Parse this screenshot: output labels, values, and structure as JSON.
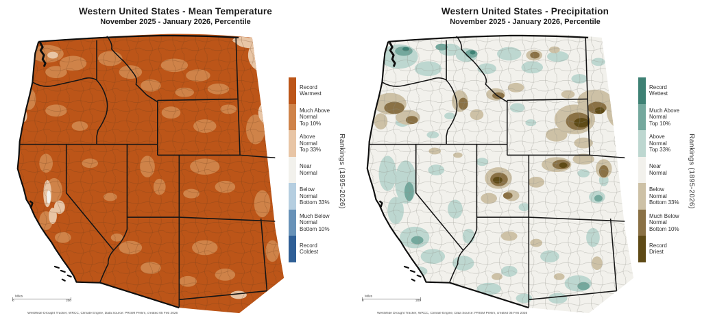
{
  "panels": [
    {
      "title": "Western United States - Mean Temperature",
      "subtitle": "November 2025 - January 2026, Percentile",
      "legend": {
        "rotated_label": "Rankings (1895-2026)",
        "items": [
          {
            "label": "Record\nWarmest",
            "color": "#bc5518"
          },
          {
            "label": "Much Above\nNormal\nTop 10%",
            "color": "#cf8349"
          },
          {
            "label": "Above\nNormal\nTop 33%",
            "color": "#e8c5a5"
          },
          {
            "label": "Near\nNormal",
            "color": "#f2f1ec"
          },
          {
            "label": "Below\nNormal\nBottom 33%",
            "color": "#b5cee0"
          },
          {
            "label": "Much Below\nNormal\nBottom 10%",
            "color": "#6892b8"
          },
          {
            "label": "Record\nColdest",
            "color": "#2f5f96"
          }
        ]
      },
      "scale_bar": {
        "label": "Miles",
        "start": "0",
        "end": "200"
      },
      "attribution": "WestWide Drought Tracker, WRCC, Climate Engine, Data Source: PRISM Prelim, created 05 Feb 2026"
    },
    {
      "title": "Western United States - Precipitation",
      "subtitle": "November 2025 - January 2026, Percentile",
      "legend": {
        "rotated_label": "Rankings (1895-2026)",
        "items": [
          {
            "label": "Record\nWettest",
            "color": "#3e8174"
          },
          {
            "label": "Much Above\nNormal\nTop 10%",
            "color": "#74a89d"
          },
          {
            "label": "Above\nNormal\nTop 33%",
            "color": "#bdd7d0"
          },
          {
            "label": "Near\nNormal",
            "color": "#f2f1ec"
          },
          {
            "label": "Below\nNormal\nBottom 33%",
            "color": "#cdc1a6"
          },
          {
            "label": "Much Below\nNormal\nBottom 10%",
            "color": "#8a7145"
          },
          {
            "label": "Record\nDriest",
            "color": "#5e4a16"
          }
        ]
      },
      "scale_bar": {
        "label": "Miles",
        "start": "0",
        "end": "200"
      },
      "attribution": "WestWide Drought Tracker, WRCC, Climate Engine, Data Source: PRISM Prelim, created 05 Feb 2026"
    }
  ],
  "chart_data": [
    {
      "type": "choropleth_map",
      "title": "Western United States - Mean Temperature",
      "subtitle": "November 2025 - January 2026, Percentile",
      "variable": "Mean Temperature",
      "period": "November 2025 - January 2026",
      "metric": "Percentile ranking",
      "legend_title": "Rankings (1895-2026)",
      "categories": [
        "Record Warmest",
        "Much Above Normal Top 10%",
        "Above Normal Top 33%",
        "Near Normal",
        "Below Normal Bottom 33%",
        "Much Below Normal Bottom 10%",
        "Record Coldest"
      ],
      "colors": [
        "#bc5518",
        "#cf8349",
        "#e8c5a5",
        "#f2f1ec",
        "#b5cee0",
        "#6892b8",
        "#2f5f96"
      ],
      "visual_summary": "Nearly the entire 11-state western US is shaded Record Warmest with mottled Much Above Normal patches; Above Normal / Near Normal only in far northeastern Montana corner and small California valley spots.",
      "scale_bar_miles": [
        0,
        200
      ],
      "source_note": "WestWide Drought Tracker, WRCC, Climate Engine, Data Source: PRISM Prelim, created 05 Feb 2026"
    },
    {
      "type": "choropleth_map",
      "title": "Western United States - Precipitation",
      "subtitle": "November 2025 - January 2026, Percentile",
      "variable": "Precipitation",
      "period": "November 2025 - January 2026",
      "metric": "Percentile ranking",
      "legend_title": "Rankings (1895-2026)",
      "categories": [
        "Record Wettest",
        "Much Above Normal Top 10%",
        "Above Normal Top 33%",
        "Near Normal",
        "Below Normal Bottom 33%",
        "Much Below Normal Bottom 10%",
        "Record Driest"
      ],
      "colors": [
        "#3e8174",
        "#74a89d",
        "#bdd7d0",
        "#f2f1ec",
        "#cdc1a6",
        "#8a7145",
        "#5e4a16"
      ],
      "visual_summary": "Mostly Near Normal (white) with Above Normal teal patches over California, Washington, northern Idaho/Montana and southern NM/AZ; Below to Much Below Normal brown patches over northwest Oregon, central Idaho, northeast Wyoming / eastern Montana, central Utah and northern Colorado.",
      "scale_bar_miles": [
        0,
        200
      ],
      "source_note": "WestWide Drought Tracker, WRCC, Climate Engine, Data Source: PRISM Prelim, created 05 Feb 2026"
    }
  ]
}
